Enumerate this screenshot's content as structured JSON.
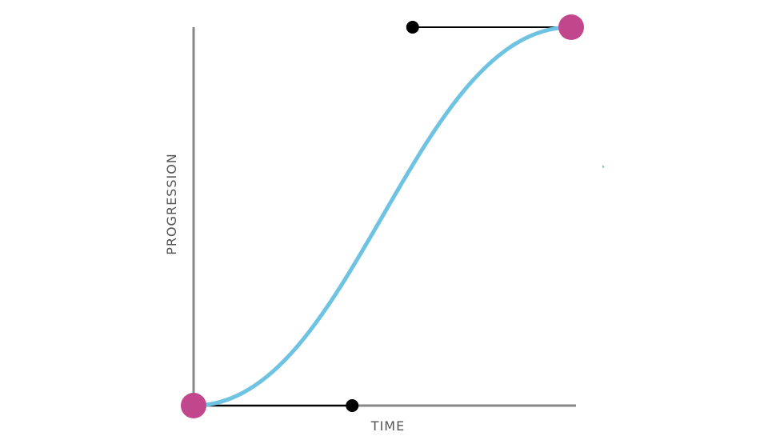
{
  "diagram": {
    "type": "cubic-bezier-easing",
    "x_axis_label": "TIME",
    "y_axis_label": "PROGRESSION",
    "bezier": {
      "control_point_1": [
        0.42,
        0
      ],
      "control_point_2": [
        0.58,
        1
      ]
    },
    "colors": {
      "curve": "#6ec3e3",
      "anchor_point": "#c2468c",
      "control_point": "#000000",
      "handle_line": "#000000",
      "axis": "#888888",
      "label": "#555555"
    }
  }
}
